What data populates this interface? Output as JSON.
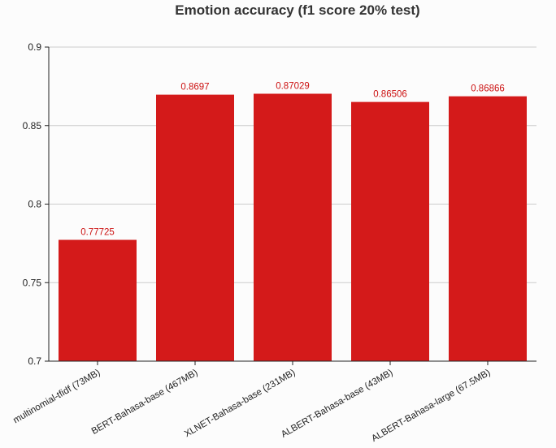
{
  "chart_data": {
    "type": "bar",
    "title": "Emotion accuracy (f1 score 20% test)",
    "xlabel": "",
    "ylabel": "",
    "categories": [
      "multinomial-tfidf (73MB)",
      "BERT-Bahasa-base (467MB)",
      "XLNET-Bahasa-base (231MB)",
      "ALBERT-Bahasa-base (43MB)",
      "ALBERT-Bahasa-large (67.5MB)"
    ],
    "values": [
      0.77725,
      0.8697,
      0.87029,
      0.86506,
      0.86866
    ],
    "data_labels": [
      "0.77725",
      "0.8697",
      "0.87029",
      "0.86506",
      "0.86866"
    ],
    "ylim": [
      0.7,
      0.9
    ],
    "yticks": [
      "0.7",
      "0.75",
      "0.8",
      "0.85",
      "0.9"
    ],
    "grid": true,
    "legend": "none",
    "bar_color": "#d41a1a",
    "label_color": "#cc1111"
  }
}
